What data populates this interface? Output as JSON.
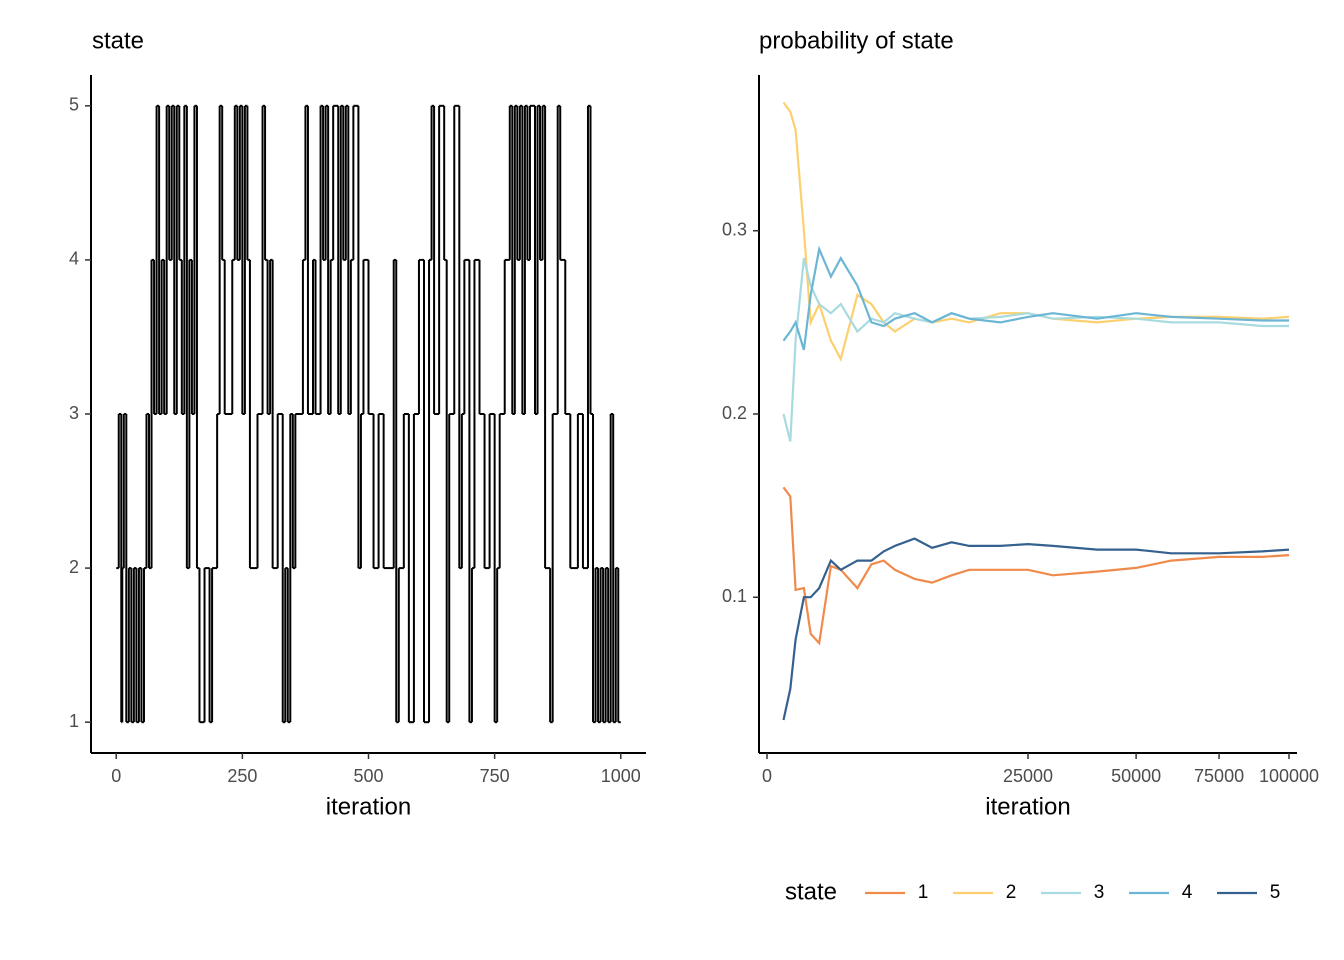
{
  "chart_data": [
    {
      "type": "step",
      "title": "state",
      "x_label": "iteration",
      "x": [
        0,
        5,
        10,
        12,
        15,
        20,
        25,
        30,
        35,
        40,
        45,
        50,
        55,
        60,
        65,
        70,
        75,
        80,
        85,
        90,
        95,
        100,
        105,
        110,
        115,
        120,
        125,
        130,
        135,
        140,
        145,
        150,
        155,
        160,
        165,
        175,
        185,
        190,
        200,
        205,
        210,
        215,
        230,
        235,
        240,
        245,
        250,
        255,
        260,
        265,
        280,
        290,
        295,
        300,
        305,
        310,
        320,
        330,
        335,
        340,
        345,
        350,
        355,
        370,
        375,
        380,
        390,
        395,
        405,
        410,
        415,
        420,
        425,
        430,
        440,
        445,
        450,
        455,
        460,
        465,
        470,
        480,
        485,
        490,
        500,
        510,
        520,
        530,
        550,
        555,
        560,
        570,
        580,
        590,
        600,
        610,
        620,
        625,
        630,
        640,
        650,
        655,
        660,
        670,
        680,
        685,
        690,
        700,
        705,
        710,
        720,
        730,
        740,
        750,
        755,
        760,
        770,
        780,
        785,
        790,
        795,
        800,
        805,
        810,
        815,
        820,
        830,
        835,
        840,
        845,
        850,
        860,
        865,
        875,
        880,
        890,
        900,
        915,
        925,
        935,
        940,
        945,
        950,
        955,
        960,
        965,
        970,
        975,
        980,
        985,
        990,
        995,
        1000
      ],
      "values": [
        2,
        3,
        1,
        2,
        3,
        1,
        2,
        1,
        2,
        1,
        2,
        1,
        2,
        3,
        2,
        4,
        3,
        5,
        3,
        4,
        3,
        5,
        4,
        5,
        3,
        5,
        4,
        3,
        5,
        2,
        4,
        3,
        5,
        2,
        1,
        2,
        1,
        2,
        3,
        5,
        4,
        3,
        4,
        5,
        4,
        5,
        3,
        5,
        4,
        2,
        3,
        5,
        4,
        3,
        4,
        2,
        3,
        1,
        2,
        1,
        3,
        2,
        3,
        4,
        5,
        3,
        4,
        3,
        5,
        4,
        5,
        3,
        4,
        5,
        3,
        5,
        4,
        5,
        3,
        4,
        5,
        2,
        3,
        4,
        3,
        2,
        3,
        2,
        4,
        1,
        2,
        3,
        1,
        3,
        4,
        1,
        4,
        5,
        3,
        5,
        4,
        1,
        3,
        5,
        2,
        3,
        4,
        1,
        2,
        4,
        3,
        2,
        3,
        1,
        2,
        3,
        4,
        5,
        3,
        5,
        4,
        5,
        3,
        5,
        4,
        5,
        3,
        5,
        4,
        5,
        2,
        1,
        3,
        5,
        4,
        3,
        2,
        3,
        2,
        5,
        3,
        1,
        2,
        1,
        2,
        1,
        2,
        1,
        3,
        1,
        2,
        1,
        1
      ],
      "color": "#000000",
      "xlim": [
        -50,
        1050
      ],
      "xticks": [
        0,
        250,
        500,
        750,
        1000
      ],
      "ylim": [
        0.8,
        5.2
      ],
      "yticks": [
        1,
        2,
        3,
        4,
        5
      ]
    },
    {
      "type": "line",
      "title": "probability of state",
      "x_label": "iteration",
      "x_scale": "sqrt",
      "x": [
        100,
        200,
        300,
        500,
        700,
        1000,
        1500,
        2000,
        3000,
        4000,
        5000,
        6000,
        8000,
        10000,
        12500,
        15000,
        20000,
        25000,
        30000,
        40000,
        50000,
        60000,
        75000,
        90000,
        100000
      ],
      "series": [
        {
          "name": "1",
          "color": "#f08a4b",
          "values": [
            0.16,
            0.155,
            0.104,
            0.105,
            0.08,
            0.075,
            0.117,
            0.115,
            0.105,
            0.118,
            0.12,
            0.115,
            0.11,
            0.108,
            0.112,
            0.115,
            0.115,
            0.115,
            0.112,
            0.114,
            0.116,
            0.12,
            0.122,
            0.122,
            0.123
          ]
        },
        {
          "name": "2",
          "color": "#fdd06f",
          "values": [
            0.37,
            0.365,
            0.355,
            0.3,
            0.25,
            0.26,
            0.24,
            0.23,
            0.265,
            0.26,
            0.25,
            0.245,
            0.252,
            0.25,
            0.252,
            0.25,
            0.255,
            0.255,
            0.252,
            0.25,
            0.252,
            0.253,
            0.253,
            0.252,
            0.253
          ]
        },
        {
          "name": "3",
          "color": "#a8dbe0",
          "values": [
            0.2,
            0.185,
            0.24,
            0.285,
            0.27,
            0.26,
            0.255,
            0.26,
            0.245,
            0.252,
            0.25,
            0.255,
            0.252,
            0.25,
            0.255,
            0.252,
            0.253,
            0.255,
            0.252,
            0.253,
            0.252,
            0.25,
            0.25,
            0.248,
            0.248
          ]
        },
        {
          "name": "4",
          "color": "#6cb6d5",
          "values": [
            0.24,
            0.245,
            0.25,
            0.235,
            0.265,
            0.29,
            0.275,
            0.285,
            0.27,
            0.25,
            0.248,
            0.252,
            0.255,
            0.25,
            0.255,
            0.252,
            0.25,
            0.253,
            0.255,
            0.252,
            0.255,
            0.253,
            0.252,
            0.251,
            0.251
          ]
        },
        {
          "name": "5",
          "color": "#35618f",
          "values": [
            0.033,
            0.05,
            0.077,
            0.1,
            0.1,
            0.105,
            0.12,
            0.115,
            0.12,
            0.12,
            0.125,
            0.128,
            0.132,
            0.127,
            0.13,
            0.128,
            0.128,
            0.129,
            0.128,
            0.126,
            0.126,
            0.124,
            0.124,
            0.125,
            0.126
          ]
        }
      ],
      "legend_title": "state",
      "legend_position": "bottom",
      "xlim": [
        0,
        100000
      ],
      "xticks": [
        0,
        25000,
        50000,
        75000,
        100000
      ],
      "ylim": [
        0.015,
        0.385
      ],
      "yticks": [
        0.1,
        0.2,
        0.3
      ]
    }
  ]
}
